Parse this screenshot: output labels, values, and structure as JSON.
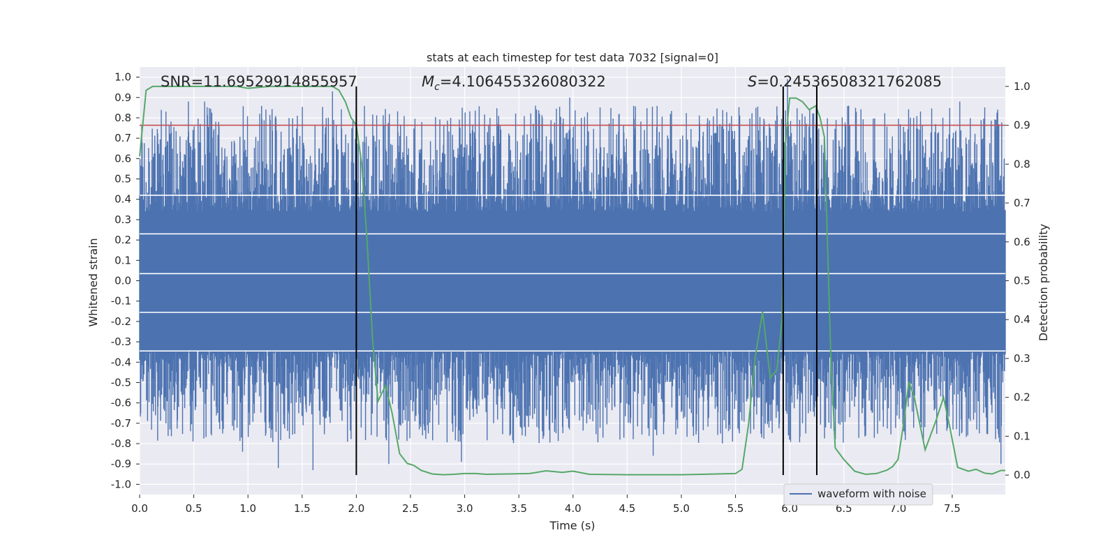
{
  "chart_data": {
    "type": "line",
    "title": "stats at each timestep for test data 7032 [signal=0]",
    "xlabel": "Time (s)",
    "ylabel_left": "Whitened strain",
    "ylabel_right": "Detection probability",
    "xlim": [
      0.0,
      7.99
    ],
    "ylim_left": [
      -1.05,
      1.05
    ],
    "ylim_right": [
      -0.05,
      1.05
    ],
    "x_ticks": [
      "0.0",
      "0.5",
      "1.0",
      "1.5",
      "2.0",
      "2.5",
      "3.0",
      "3.5",
      "4.0",
      "4.5",
      "5.0",
      "5.5",
      "6.0",
      "6.5",
      "7.0",
      "7.5"
    ],
    "y_ticks_left": [
      "1.0",
      "0.9",
      "0.8",
      "0.7",
      "0.6",
      "0.5",
      "0.4",
      "0.3",
      "0.2",
      "0.1",
      "0.0",
      "-0.1",
      "-0.2",
      "-0.3",
      "-0.4",
      "-0.5",
      "-0.6",
      "-0.7",
      "-0.8",
      "-0.9",
      "-1.0"
    ],
    "y_ticks_right": [
      "1.0",
      "0.9",
      "0.8",
      "0.7",
      "0.6",
      "0.5",
      "0.4",
      "0.3",
      "0.2",
      "0.1",
      "0.0"
    ],
    "grid": true,
    "legend": {
      "position": "bottom-right",
      "entries": [
        "waveform with noise"
      ]
    },
    "annotations": {
      "snr": "SNR=11.69529914855957",
      "mc_symbol": "M",
      "mc_sub": "c",
      "mc_value": "=4.106455326080322",
      "s_symbol": "S",
      "s_value": "=0.24536508321762085"
    },
    "threshold_probability": 0.9,
    "vertical_markers_s": [
      2.0,
      5.94,
      6.25
    ],
    "waveform_series": {
      "name": "waveform with noise",
      "color": "#4c72b0",
      "core_amplitude": 0.34,
      "spikes": [
        {
          "t": 0.45,
          "v": 0.88
        },
        {
          "t": 0.6,
          "v": 0.88
        },
        {
          "t": 1.78,
          "v": 0.93
        },
        {
          "t": 3.97,
          "v": 0.9
        },
        {
          "t": 5.98,
          "v": 0.99
        },
        {
          "t": 7.92,
          "v": 0.84
        },
        {
          "t": 7.57,
          "v": 0.88
        },
        {
          "t": 0.28,
          "v": -0.73
        },
        {
          "t": 0.95,
          "v": -0.84
        },
        {
          "t": 1.28,
          "v": -0.92
        },
        {
          "t": 1.6,
          "v": -0.93
        },
        {
          "t": 2.3,
          "v": -0.9
        },
        {
          "t": 2.97,
          "v": -0.89
        },
        {
          "t": 4.74,
          "v": -0.86
        },
        {
          "t": 7.95,
          "v": -0.9
        }
      ]
    },
    "probability_series": {
      "name": "detection probability",
      "color": "#55a868",
      "x": [
        0.0,
        0.06,
        0.12,
        0.2,
        0.4,
        0.6,
        0.8,
        0.9,
        1.0,
        1.2,
        1.4,
        1.6,
        1.7,
        1.78,
        1.84,
        1.9,
        1.95,
        2.0,
        2.05,
        2.1,
        2.15,
        2.2,
        2.27,
        2.33,
        2.4,
        2.47,
        2.53,
        2.6,
        2.7,
        2.8,
        2.9,
        3.0,
        3.1,
        3.2,
        3.4,
        3.6,
        3.75,
        3.9,
        4.0,
        4.15,
        4.5,
        5.0,
        5.5,
        5.56,
        5.62,
        5.68,
        5.75,
        5.82,
        5.88,
        5.93,
        5.96,
        6.0,
        6.06,
        6.12,
        6.18,
        6.24,
        6.28,
        6.32,
        6.38,
        6.42,
        6.5,
        6.6,
        6.7,
        6.8,
        6.9,
        6.95,
        7.0,
        7.05,
        7.1,
        7.15,
        7.25,
        7.35,
        7.42,
        7.48,
        7.55,
        7.65,
        7.72,
        7.8,
        7.87,
        7.95,
        7.99
      ],
      "y": [
        0.82,
        0.99,
        1.0,
        1.0,
        1.0,
        1.0,
        1.0,
        1.0,
        0.995,
        1.0,
        1.0,
        1.0,
        1.0,
        1.0,
        0.99,
        0.96,
        0.92,
        0.9,
        0.8,
        0.6,
        0.35,
        0.19,
        0.23,
        0.16,
        0.055,
        0.03,
        0.025,
        0.012,
        0.003,
        0.001,
        0.002,
        0.004,
        0.004,
        0.002,
        0.003,
        0.004,
        0.011,
        0.007,
        0.01,
        0.002,
        0.001,
        0.001,
        0.004,
        0.015,
        0.13,
        0.3,
        0.42,
        0.25,
        0.27,
        0.4,
        0.85,
        0.97,
        0.97,
        0.96,
        0.94,
        0.95,
        0.92,
        0.87,
        0.3,
        0.07,
        0.04,
        0.01,
        0.002,
        0.004,
        0.013,
        0.022,
        0.04,
        0.13,
        0.24,
        0.2,
        0.065,
        0.14,
        0.2,
        0.12,
        0.02,
        0.01,
        0.015,
        0.005,
        0.003,
        0.012,
        0.012
      ]
    }
  }
}
